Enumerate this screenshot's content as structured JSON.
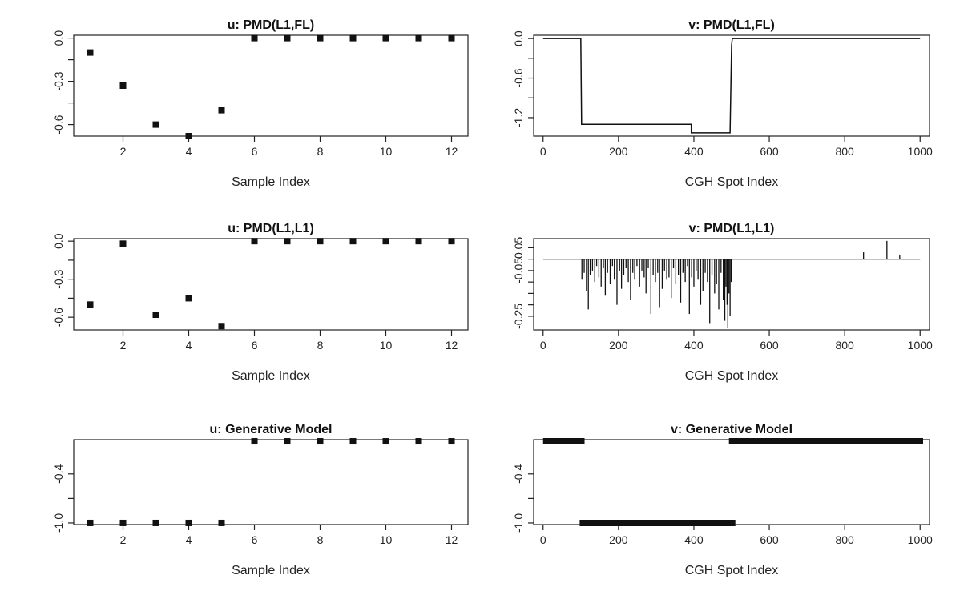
{
  "chart_data": [
    {
      "id": "u_fl",
      "type": "scatter",
      "title": "u: PMD(L1,FL)",
      "xlabel": "Sample Index",
      "xlim": [
        0.5,
        12.5
      ],
      "ylim": [
        -0.68,
        0.02
      ],
      "xticks": [
        2,
        4,
        6,
        8,
        10,
        12
      ],
      "yticks": [
        0.0,
        -0.3,
        -0.6
      ],
      "x": [
        1,
        2,
        3,
        4,
        5,
        6,
        7,
        8,
        9,
        10,
        11,
        12
      ],
      "y": [
        -0.1,
        -0.33,
        -0.6,
        -0.68,
        -0.5,
        0,
        0,
        0,
        0,
        0,
        0,
        0
      ]
    },
    {
      "id": "v_fl",
      "type": "line",
      "title": "v: PMD(L1,FL)",
      "xlabel": "CGH Spot Index",
      "xlim": [
        -25,
        1025
      ],
      "ylim": [
        -1.48,
        0.05
      ],
      "xticks": [
        0,
        200,
        400,
        600,
        800,
        1000
      ],
      "yticks": [
        0.0,
        -0.6,
        -1.2
      ],
      "points": [
        [
          0,
          0
        ],
        [
          100,
          0
        ],
        [
          102,
          -1.3
        ],
        [
          393,
          -1.3
        ],
        [
          393,
          -1.43
        ],
        [
          496,
          -1.43
        ],
        [
          500,
          -0.1
        ],
        [
          502,
          0
        ],
        [
          1000,
          0
        ]
      ]
    },
    {
      "id": "u_l1",
      "type": "scatter",
      "title": "u: PMD(L1,L1)",
      "xlabel": "Sample Index",
      "xlim": [
        0.5,
        12.5
      ],
      "ylim": [
        -0.7,
        0.02
      ],
      "xticks": [
        2,
        4,
        6,
        8,
        10,
        12
      ],
      "yticks": [
        0.0,
        -0.3,
        -0.6
      ],
      "x": [
        1,
        2,
        3,
        4,
        5,
        6,
        7,
        8,
        9,
        10,
        11,
        12
      ],
      "y": [
        -0.5,
        -0.02,
        -0.58,
        -0.45,
        -0.67,
        0,
        0,
        0,
        0,
        0,
        0,
        0
      ]
    },
    {
      "id": "v_l1",
      "type": "bar",
      "title": "v: PMD(L1,L1)",
      "xlabel": "CGH Spot Index",
      "xlim": [
        -25,
        1025
      ],
      "ylim": [
        -0.31,
        0.09
      ],
      "xticks": [
        0,
        200,
        400,
        600,
        800,
        1000
      ],
      "yticks": [
        0.05,
        -0.05,
        -0.25
      ],
      "baseline": 0,
      "x": [
        103,
        109,
        115,
        120,
        125,
        131,
        137,
        142,
        148,
        154,
        160,
        165,
        171,
        178,
        184,
        189,
        196,
        203,
        208,
        214,
        220,
        226,
        232,
        238,
        243,
        249,
        256,
        262,
        268,
        273,
        279,
        286,
        292,
        298,
        304,
        309,
        316,
        322,
        328,
        334,
        340,
        346,
        352,
        359,
        365,
        371,
        377,
        383,
        388,
        394,
        400,
        406,
        411,
        418,
        424,
        430,
        436,
        442,
        448,
        455,
        460,
        466,
        472,
        478,
        482,
        485,
        488,
        490,
        493,
        496,
        499,
        850,
        912,
        946
      ],
      "y": [
        -0.09,
        -0.06,
        -0.14,
        -0.22,
        -0.07,
        -0.05,
        -0.1,
        -0.03,
        -0.08,
        -0.12,
        -0.04,
        -0.16,
        -0.06,
        -0.11,
        -0.03,
        -0.09,
        -0.2,
        -0.05,
        -0.13,
        -0.07,
        -0.04,
        -0.1,
        -0.18,
        -0.06,
        -0.09,
        -0.03,
        -0.12,
        -0.05,
        -0.08,
        -0.15,
        -0.04,
        -0.24,
        -0.07,
        -0.1,
        -0.06,
        -0.21,
        -0.13,
        -0.05,
        -0.09,
        -0.08,
        -0.17,
        -0.04,
        -0.11,
        -0.07,
        -0.19,
        -0.06,
        -0.1,
        -0.03,
        -0.24,
        -0.08,
        -0.12,
        -0.05,
        -0.09,
        -0.2,
        -0.14,
        -0.06,
        -0.1,
        -0.28,
        -0.07,
        -0.15,
        -0.11,
        -0.22,
        -0.06,
        -0.18,
        -0.27,
        -0.12,
        -0.2,
        -0.3,
        -0.15,
        -0.25,
        -0.1,
        0.03,
        0.08,
        0.02
      ]
    },
    {
      "id": "u_gen",
      "type": "scatter",
      "title": "u: Generative Model",
      "xlabel": "Sample Index",
      "xlim": [
        0.5,
        12.5
      ],
      "ylim": [
        -1.02,
        0.02
      ],
      "xticks": [
        2,
        4,
        6,
        8,
        10,
        12
      ],
      "yticks": [
        -0.4,
        -1.0
      ],
      "x": [
        1,
        2,
        3,
        4,
        5,
        6,
        7,
        8,
        9,
        10,
        11,
        12
      ],
      "y": [
        -1,
        -1,
        -1,
        -1,
        -1,
        0,
        0,
        0,
        0,
        0,
        0,
        0
      ]
    },
    {
      "id": "v_gen",
      "type": "line",
      "title": "v: Generative Model",
      "xlabel": "CGH Spot Index",
      "xlim": [
        -25,
        1025
      ],
      "ylim": [
        -1.02,
        0.02
      ],
      "xticks": [
        0,
        200,
        400,
        600,
        800,
        1000
      ],
      "yticks": [
        -0.4,
        -1.0
      ],
      "segments": [
        {
          "from": 0,
          "to": 110,
          "y": 0
        },
        {
          "from": 97,
          "to": 510,
          "y": -1
        },
        {
          "from": 493,
          "to": 1008,
          "y": 0
        }
      ]
    }
  ]
}
